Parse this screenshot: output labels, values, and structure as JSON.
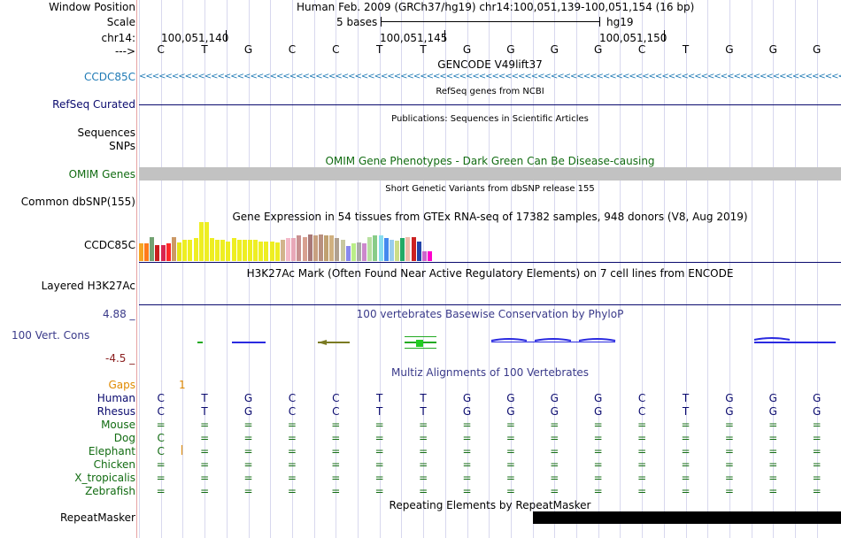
{
  "header": {
    "window_position_label": "Window Position",
    "window_position_value": "Human Feb. 2009 (GRCh37/hg19)   chr14:100,051,139-100,051,154 (16 bp)",
    "scale_label": "Scale",
    "scale_value": "5 bases",
    "scale_assembly": "hg19",
    "chrom_label": "chr14:",
    "ticks": [
      "100,051,140",
      "100,051,145",
      "100,051,150"
    ],
    "strand_label": "--->"
  },
  "sequence": [
    "C",
    "T",
    "G",
    "C",
    "C",
    "T",
    "T",
    "G",
    "G",
    "G",
    "G",
    "C",
    "T",
    "G",
    "G",
    "G"
  ],
  "tracks": {
    "gencode": {
      "title": "GENCODE V49lift37",
      "label": "CCDC85C",
      "color": "#1f7ab5"
    },
    "refseq": {
      "title": "RefSeq genes from NCBI",
      "label": "RefSeq Curated",
      "color": "#0a0a6e"
    },
    "publications": {
      "title": "Publications: Sequences in Scientific Articles",
      "labels": [
        "Sequences",
        "SNPs"
      ]
    },
    "omim": {
      "title": "OMIM Gene Phenotypes - Dark Green Can Be Disease-causing",
      "label": "OMIM Genes",
      "color": "#126c12"
    },
    "dbsnp": {
      "title": "Short Genetic Variants from dbSNP release 155",
      "label": "Common dbSNP(155)"
    },
    "gtex": {
      "title": "Gene Expression in 54 tissues from GTEx RNA-seq of 17382 samples, 948 donors (V8, Aug 2019)",
      "label": "CCDC85C"
    },
    "h3k27ac": {
      "title": "H3K27Ac Mark (Often Found Near Active Regulatory Elements) on 7 cell lines from ENCODE",
      "label": "Layered H3K27Ac"
    },
    "phylop": {
      "title": "100 vertebrates Basewise Conservation by PhyloP",
      "label": "100 Vert. Cons",
      "max": "4.88 _",
      "min": "-4.5 _"
    },
    "multiz": {
      "title": "Multiz Alignments of 100 Vertebrates"
    },
    "repeatmasker": {
      "title": "Repeating Elements by RepeatMasker",
      "label": "RepeatMasker"
    }
  },
  "gaps": {
    "label": "Gaps",
    "value": "1"
  },
  "alignment": [
    {
      "species": "Human",
      "color": "#0a0a6e",
      "bases": [
        "C",
        "T",
        "G",
        "C",
        "C",
        "T",
        "T",
        "G",
        "G",
        "G",
        "G",
        "C",
        "T",
        "G",
        "G",
        "G"
      ]
    },
    {
      "species": "Rhesus",
      "color": "#0a0a6e",
      "bases": [
        "C",
        "T",
        "G",
        "C",
        "C",
        "T",
        "T",
        "G",
        "G",
        "G",
        "G",
        "C",
        "T",
        "G",
        "G",
        "G"
      ]
    },
    {
      "species": "Mouse",
      "color": "#126c12",
      "bases": [
        "=",
        "=",
        "=",
        "=",
        "=",
        "=",
        "=",
        "=",
        "=",
        "=",
        "=",
        "=",
        "=",
        "=",
        "=",
        "="
      ]
    },
    {
      "species": "Dog",
      "color": "#126c12",
      "bases": [
        "C",
        "=",
        "=",
        "=",
        "=",
        "=",
        "=",
        "=",
        "=",
        "=",
        "=",
        "=",
        "=",
        "=",
        "=",
        "="
      ]
    },
    {
      "species": "Elephant",
      "color": "#126c12",
      "bases": [
        "C",
        "=",
        "=",
        "=",
        "=",
        "=",
        "=",
        "=",
        "=",
        "=",
        "=",
        "=",
        "=",
        "=",
        "=",
        "="
      ]
    },
    {
      "species": "Chicken",
      "color": "#126c12",
      "bases": [
        "=",
        "=",
        "=",
        "=",
        "=",
        "=",
        "=",
        "=",
        "=",
        "=",
        "=",
        "=",
        "=",
        "=",
        "=",
        "="
      ]
    },
    {
      "species": "X_tropicalis",
      "color": "#126c12",
      "bases": [
        "=",
        "=",
        "=",
        "=",
        "=",
        "=",
        "=",
        "=",
        "=",
        "=",
        "=",
        "=",
        "=",
        "=",
        "=",
        "="
      ]
    },
    {
      "species": "Zebrafish",
      "color": "#126c12",
      "bases": [
        "=",
        "=",
        "=",
        "=",
        "=",
        "=",
        "=",
        "=",
        "=",
        "=",
        "=",
        "=",
        "=",
        "=",
        "=",
        "="
      ]
    }
  ],
  "gtex_bars": [
    {
      "color": "#f5a623",
      "value": 0.45
    },
    {
      "color": "#ff7a1a",
      "value": 0.45
    },
    {
      "color": "#72a272",
      "value": 0.62
    },
    {
      "color": "#c81e1e",
      "value": 0.42
    },
    {
      "color": "#d8254f",
      "value": 0.42
    },
    {
      "color": "#ff2828",
      "value": 0.45
    },
    {
      "color": "#cc9966",
      "value": 0.62
    },
    {
      "color": "#e6e61a",
      "value": 0.48
    },
    {
      "color": "#eeee22",
      "value": 0.55
    },
    {
      "color": "#eeee22",
      "value": 0.55
    },
    {
      "color": "#eeee22",
      "value": 0.6
    },
    {
      "color": "#eeee22",
      "value": 1.0
    },
    {
      "color": "#eeee22",
      "value": 1.0
    },
    {
      "color": "#eeee22",
      "value": 0.58
    },
    {
      "color": "#eeee22",
      "value": 0.55
    },
    {
      "color": "#eeee22",
      "value": 0.55
    },
    {
      "color": "#eeee22",
      "value": 0.5
    },
    {
      "color": "#eeee22",
      "value": 0.58
    },
    {
      "color": "#eeee22",
      "value": 0.55
    },
    {
      "color": "#eeee22",
      "value": 0.55
    },
    {
      "color": "#eeee22",
      "value": 0.55
    },
    {
      "color": "#eeee22",
      "value": 0.55
    },
    {
      "color": "#eeee22",
      "value": 0.5
    },
    {
      "color": "#eeee22",
      "value": 0.5
    },
    {
      "color": "#eeee22",
      "value": 0.5
    },
    {
      "color": "#eeee22",
      "value": 0.48
    },
    {
      "color": "#d2b48c",
      "value": 0.55
    },
    {
      "color": "#f4b8c8",
      "value": 0.58
    },
    {
      "color": "#e8a8b8",
      "value": 0.58
    },
    {
      "color": "#c89090",
      "value": 0.65
    },
    {
      "color": "#d8a090",
      "value": 0.62
    },
    {
      "color": "#a87878",
      "value": 0.68
    },
    {
      "color": "#c8a080",
      "value": 0.65
    },
    {
      "color": "#b89080",
      "value": 0.68
    },
    {
      "color": "#c0a070",
      "value": 0.65
    },
    {
      "color": "#d0b080",
      "value": 0.65
    },
    {
      "color": "#b0a090",
      "value": 0.6
    },
    {
      "color": "#c8c8a0",
      "value": 0.55
    },
    {
      "color": "#8888ee",
      "value": 0.38
    },
    {
      "color": "#bbee88",
      "value": 0.45
    },
    {
      "color": "#aaaaaa",
      "value": 0.48
    },
    {
      "color": "#cc88cc",
      "value": 0.45
    },
    {
      "color": "#b8e0a0",
      "value": 0.62
    },
    {
      "color": "#88cc88",
      "value": 0.65
    },
    {
      "color": "#88ddee",
      "value": 0.65
    },
    {
      "color": "#4488ee",
      "value": 0.6
    },
    {
      "color": "#99ccee",
      "value": 0.55
    },
    {
      "color": "#ccdd88",
      "value": 0.52
    },
    {
      "color": "#22aa66",
      "value": 0.6
    },
    {
      "color": "#eebbaa",
      "value": 0.62
    },
    {
      "color": "#cc2222",
      "value": 0.62
    },
    {
      "color": "#2244aa",
      "value": 0.5
    },
    {
      "color": "#cc66cc",
      "value": 0.25
    },
    {
      "color": "#ff00cc",
      "value": 0.25
    }
  ]
}
